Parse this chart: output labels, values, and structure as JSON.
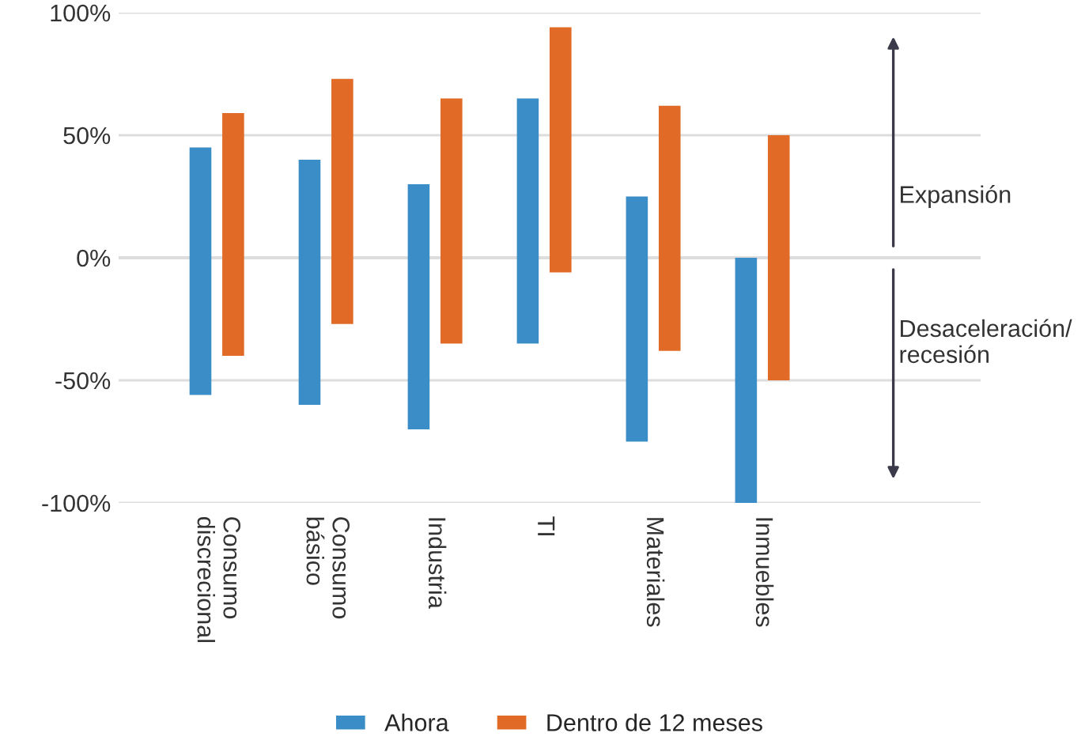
{
  "chart_data": {
    "type": "bar",
    "categories": [
      "Consumo\ndiscrecional",
      "Consumo\nbásico",
      "Industria",
      "TI",
      "Materiales",
      "Inmuebles"
    ],
    "series": [
      {
        "name": "Ahora",
        "color": "#3a8dc6",
        "base": [
          -56,
          -60,
          -70,
          -35,
          -75,
          -100
        ],
        "values": [
          101,
          100,
          100,
          100,
          100,
          100
        ]
      },
      {
        "name": "Dentro de 12 meses",
        "color": "#e06a26",
        "base": [
          -40,
          -27,
          -35,
          -6,
          -38,
          -50
        ],
        "values": [
          99,
          100,
          100,
          100,
          100,
          100
        ]
      }
    ],
    "ylim": [
      -100,
      100
    ],
    "yticks": [
      {
        "value": 100,
        "label": "100%"
      },
      {
        "value": 50,
        "label": "50%"
      },
      {
        "value": 0,
        "label": "0%"
      },
      {
        "value": -50,
        "label": "-50%"
      },
      {
        "value": -100,
        "label": "-100%"
      }
    ],
    "grid": "y",
    "legend": "bottom",
    "annotations": [
      "Expansión",
      "Desaceleración/\nrecesión"
    ]
  }
}
